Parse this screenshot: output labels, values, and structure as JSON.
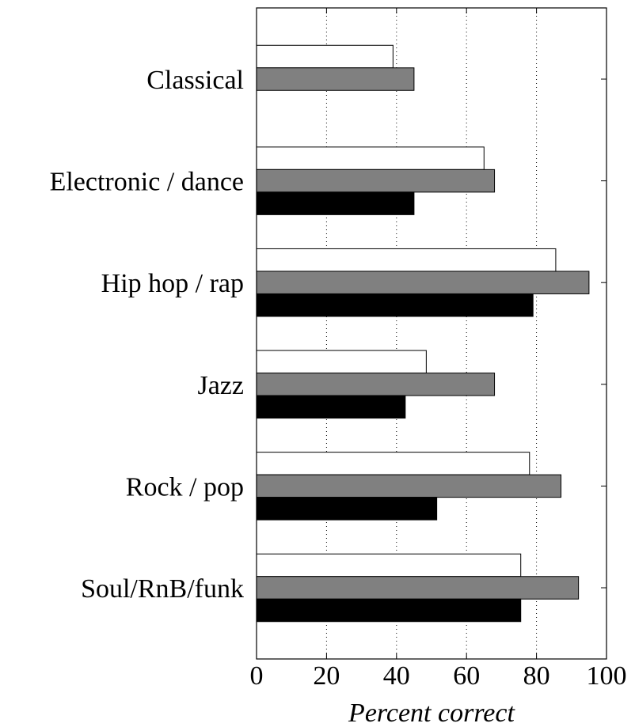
{
  "chart_data": {
    "type": "barh",
    "xlabel": "Percent correct",
    "categories": [
      "Classical",
      "Electronic / dance",
      "Hip hop / rap",
      "Jazz",
      "Rock / pop",
      "Soul/RnB/funk"
    ],
    "series": [
      {
        "color": "#ffffff",
        "values": [
          39,
          65,
          85.5,
          48.5,
          78,
          75.5
        ]
      },
      {
        "color": "#808080",
        "values": [
          45,
          68,
          95,
          68,
          87,
          92
        ]
      },
      {
        "color": "#000000",
        "values": [
          null,
          45,
          79,
          42.5,
          51.5,
          75.5
        ]
      }
    ],
    "xlim": [
      0,
      100
    ],
    "xticks": [
      0,
      20,
      40,
      60,
      80,
      100
    ],
    "grid": true
  }
}
